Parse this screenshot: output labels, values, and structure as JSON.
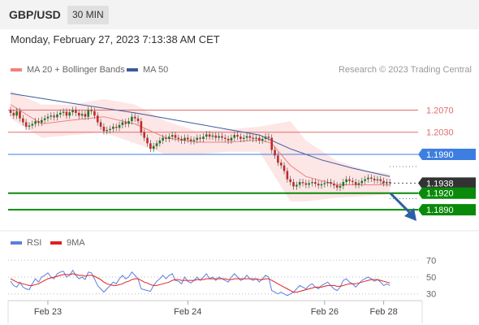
{
  "header": {
    "symbol": "GBP/USD",
    "interval": "30 MIN",
    "datetime": "Monday, February 27, 2023 7:13:38 AM CET",
    "credit": "Research © 2023 Trading Central"
  },
  "colors": {
    "ma20": "#f08080",
    "bollinger_fill": "#fde2e2",
    "ma50": "#3a5b9c",
    "resistance": "#e36b6b",
    "pivot": "#3d7fe0",
    "support": "#0a8a0a",
    "current": "#333333",
    "candle_up": "#1e7a1e",
    "candle_down": "#c62828",
    "arrow": "#2b5ea7",
    "rsi": "#5b7fe0",
    "rsi_ma": "#e02020"
  },
  "chart_data": [
    {
      "type": "candlestick",
      "title": "GBP/USD",
      "legend": [
        {
          "name": "MA 20 + Bollinger Bands",
          "key": "ma20"
        },
        {
          "name": "MA 50",
          "key": "ma50"
        }
      ],
      "ylim": [
        1.1855,
        1.2125
      ],
      "x_ticks": [
        {
          "label": "Feb 23",
          "index": 12
        },
        {
          "label": "Feb 24",
          "index": 57
        },
        {
          "label": "Feb 26",
          "index": 101
        },
        {
          "label": "Feb 28",
          "index": 120
        }
      ],
      "levels": [
        {
          "label": "1.2070",
          "value": 1.207,
          "kind": "resistance"
        },
        {
          "label": "1.2030",
          "value": 1.203,
          "kind": "resistance"
        },
        {
          "label": "1.1990",
          "value": 1.199,
          "kind": "pivot"
        },
        {
          "label": "1.1938",
          "value": 1.1938,
          "kind": "current"
        },
        {
          "label": "1.1920",
          "value": 1.192,
          "kind": "support"
        },
        {
          "label": "1.1890",
          "value": 1.189,
          "kind": "support"
        }
      ],
      "ma20": [
        [
          0,
          1.208
        ],
        [
          10,
          1.2045
        ],
        [
          20,
          1.2052
        ],
        [
          30,
          1.2058
        ],
        [
          40,
          1.2045
        ],
        [
          50,
          1.202
        ],
        [
          60,
          1.2012
        ],
        [
          70,
          1.2012
        ],
        [
          80,
          1.2016
        ],
        [
          84,
          1.201
        ],
        [
          90,
          1.197
        ],
        [
          95,
          1.195
        ],
        [
          105,
          1.1935
        ],
        [
          115,
          1.1935
        ],
        [
          122,
          1.1935
        ]
      ],
      "bb_upper": [
        [
          0,
          1.2105
        ],
        [
          10,
          1.208
        ],
        [
          20,
          1.208
        ],
        [
          30,
          1.209
        ],
        [
          40,
          1.208
        ],
        [
          50,
          1.205
        ],
        [
          60,
          1.2032
        ],
        [
          70,
          1.2035
        ],
        [
          80,
          1.204
        ],
        [
          90,
          1.205
        ],
        [
          95,
          1.2015
        ],
        [
          105,
          1.1978
        ],
        [
          115,
          1.196
        ],
        [
          122,
          1.1955
        ]
      ],
      "bb_lower": [
        [
          0,
          1.2055
        ],
        [
          10,
          1.202
        ],
        [
          20,
          1.2025
        ],
        [
          30,
          1.203
        ],
        [
          40,
          1.201
        ],
        [
          50,
          1.199
        ],
        [
          60,
          1.199
        ],
        [
          70,
          1.1995
        ],
        [
          80,
          1.1995
        ],
        [
          90,
          1.1905
        ],
        [
          95,
          1.1905
        ],
        [
          105,
          1.1912
        ],
        [
          115,
          1.1915
        ],
        [
          122,
          1.1918
        ]
      ],
      "ma50": [
        [
          0,
          1.21
        ],
        [
          20,
          1.2082
        ],
        [
          40,
          1.2065
        ],
        [
          60,
          1.2045
        ],
        [
          80,
          1.2025
        ],
        [
          90,
          1.2
        ],
        [
          100,
          1.198
        ],
        [
          110,
          1.1965
        ],
        [
          122,
          1.195
        ]
      ],
      "candles_open": [
        1.207,
        1.2065,
        1.206,
        1.2068,
        1.2055,
        1.2048,
        1.204,
        1.2042,
        1.2045,
        1.205,
        1.2047,
        1.2052,
        1.2055,
        1.2058,
        1.206,
        1.2057,
        1.2062,
        1.2065,
        1.2067,
        1.206,
        1.2066,
        1.207,
        1.2065,
        1.206,
        1.2063,
        1.2058,
        1.207,
        1.2068,
        1.206,
        1.2048,
        1.204,
        1.2032,
        1.2034,
        1.2036,
        1.204,
        1.2038,
        1.2043,
        1.2048,
        1.2045,
        1.205,
        1.2058,
        1.2055,
        1.205,
        1.203,
        1.202,
        1.201,
        1.2,
        1.2005,
        1.201,
        1.2015,
        1.202,
        1.2018,
        1.2022,
        1.2025,
        1.202,
        1.2018,
        1.2015,
        1.202,
        1.2017,
        1.2014,
        1.2016,
        1.202,
        1.2018,
        1.2022,
        1.2026,
        1.2022,
        1.2024,
        1.202,
        1.2023,
        1.202,
        1.2018,
        1.2015,
        1.202,
        1.2025,
        1.2022,
        1.2018,
        1.202,
        1.2023,
        1.202,
        1.2018,
        1.202,
        1.2015,
        1.2018,
        1.2022,
        1.202,
        1.1998,
        1.1988,
        1.1975,
        1.197,
        1.196,
        1.1945,
        1.194,
        1.1932,
        1.1935,
        1.194,
        1.1938,
        1.1935,
        1.1938,
        1.194,
        1.1937,
        1.1934,
        1.1936,
        1.1938,
        1.194,
        1.1937,
        1.1934,
        1.193,
        1.1933,
        1.194,
        1.1945,
        1.1942,
        1.194,
        1.1935,
        1.1938,
        1.1942,
        1.1945,
        1.1948,
        1.1946,
        1.1943,
        1.1945,
        1.1942,
        1.1938,
        1.194
      ],
      "candles_close": [
        1.2065,
        1.206,
        1.2068,
        1.2055,
        1.2048,
        1.204,
        1.2042,
        1.2045,
        1.205,
        1.2047,
        1.2052,
        1.2055,
        1.2058,
        1.206,
        1.2057,
        1.2062,
        1.2065,
        1.2067,
        1.206,
        1.2066,
        1.207,
        1.2065,
        1.206,
        1.2063,
        1.2058,
        1.207,
        1.2068,
        1.206,
        1.2048,
        1.204,
        1.2032,
        1.2034,
        1.2036,
        1.204,
        1.2038,
        1.2043,
        1.2048,
        1.2045,
        1.205,
        1.2058,
        1.2055,
        1.205,
        1.203,
        1.202,
        1.201,
        1.2,
        1.2005,
        1.201,
        1.2015,
        1.202,
        1.2018,
        1.2022,
        1.2025,
        1.202,
        1.2018,
        1.2015,
        1.202,
        1.2017,
        1.2014,
        1.2016,
        1.202,
        1.2018,
        1.2022,
        1.2026,
        1.2022,
        1.2024,
        1.202,
        1.2023,
        1.202,
        1.2018,
        1.2015,
        1.202,
        1.2025,
        1.2022,
        1.2018,
        1.202,
        1.2023,
        1.202,
        1.2018,
        1.202,
        1.2015,
        1.2018,
        1.2022,
        1.202,
        1.1998,
        1.1988,
        1.1975,
        1.197,
        1.196,
        1.1945,
        1.194,
        1.1932,
        1.1935,
        1.194,
        1.1938,
        1.1935,
        1.1938,
        1.194,
        1.1937,
        1.1934,
        1.1936,
        1.1938,
        1.194,
        1.1937,
        1.1934,
        1.193,
        1.1933,
        1.194,
        1.1945,
        1.1942,
        1.194,
        1.1935,
        1.1938,
        1.1942,
        1.1945,
        1.1948,
        1.1946,
        1.1943,
        1.1945,
        1.1942,
        1.1938,
        1.194,
        1.1938
      ]
    },
    {
      "type": "line",
      "legend": [
        {
          "name": "RSI",
          "key": "rsi"
        },
        {
          "name": "9MA",
          "key": "rsi_ma"
        }
      ],
      "ylim": [
        22,
        78
      ],
      "y_ticks": [
        30,
        50,
        70
      ],
      "rsi": [
        45,
        40,
        38,
        44,
        38,
        36,
        35,
        42,
        48,
        44,
        50,
        52,
        55,
        50,
        48,
        54,
        56,
        57,
        50,
        52,
        58,
        52,
        48,
        50,
        47,
        56,
        55,
        48,
        40,
        36,
        32,
        36,
        40,
        44,
        42,
        48,
        52,
        48,
        50,
        56,
        52,
        48,
        36,
        35,
        34,
        33,
        40,
        45,
        48,
        52,
        48,
        52,
        54,
        46,
        45,
        42,
        50,
        45,
        43,
        46,
        50,
        46,
        50,
        54,
        48,
        50,
        46,
        50,
        48,
        46,
        44,
        50,
        54,
        50,
        46,
        48,
        52,
        48,
        46,
        48,
        44,
        48,
        52,
        50,
        34,
        32,
        30,
        32,
        30,
        28,
        30,
        32,
        36,
        40,
        38,
        36,
        40,
        42,
        38,
        36,
        40,
        42,
        44,
        40,
        36,
        34,
        38,
        46,
        48,
        44,
        42,
        38,
        42,
        46,
        48,
        50,
        48,
        45,
        47,
        44,
        40,
        42,
        40
      ],
      "rsi_ma": [
        48,
        46,
        44,
        43,
        42,
        41,
        40,
        40,
        41,
        42,
        44,
        46,
        48,
        49,
        50,
        51,
        52,
        53,
        53,
        53,
        54,
        53,
        52,
        52,
        51,
        52,
        52,
        51,
        49,
        47,
        44,
        42,
        41,
        40,
        40,
        41,
        42,
        44,
        45,
        47,
        48,
        48,
        46,
        44,
        43,
        41,
        40,
        40,
        41,
        42,
        43,
        44,
        46,
        47,
        47,
        46,
        46,
        46,
        46,
        46,
        47,
        47,
        47,
        48,
        48,
        48,
        48,
        48,
        48,
        48,
        47,
        47,
        48,
        48,
        48,
        48,
        48,
        48,
        48,
        48,
        47,
        47,
        48,
        48,
        46,
        44,
        42,
        40,
        38,
        36,
        34,
        32,
        32,
        33,
        34,
        35,
        36,
        37,
        38,
        38,
        38,
        39,
        40,
        40,
        40,
        39,
        39,
        40,
        41,
        42,
        42,
        42,
        43,
        44,
        45,
        46,
        47,
        47,
        47,
        46,
        45,
        44,
        43
      ]
    }
  ]
}
